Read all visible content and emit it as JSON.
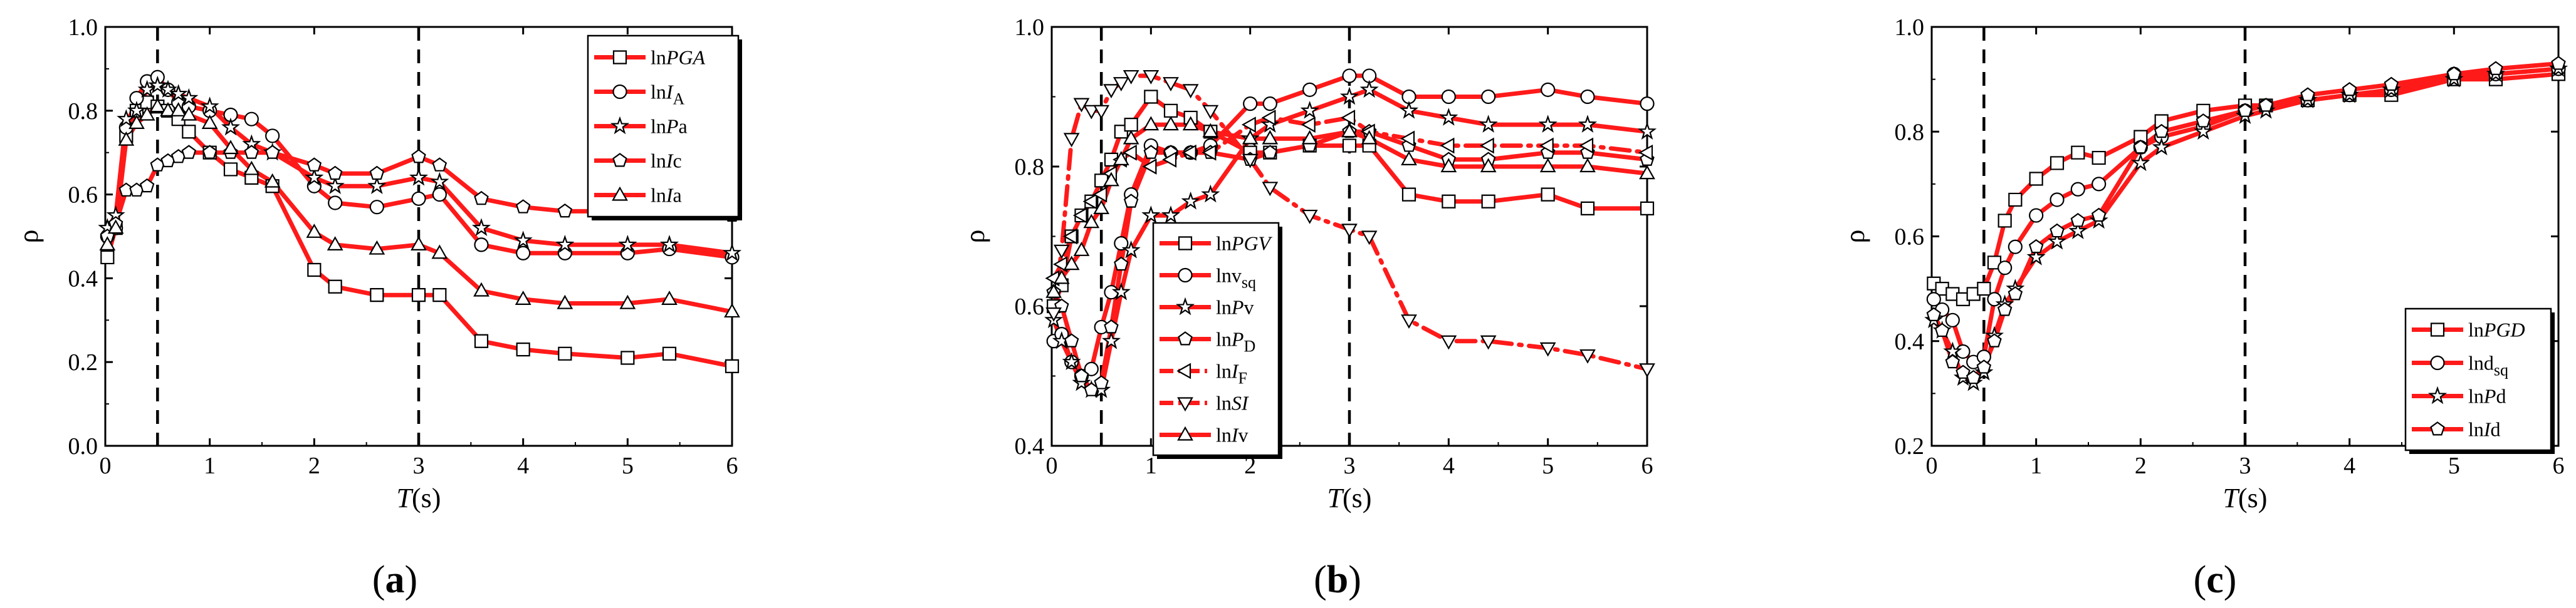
{
  "figure": {
    "panel_labels": [
      "(a)",
      "(b)",
      "(c)"
    ]
  },
  "colors": {
    "line": "#ff1a1a",
    "axis": "#000000",
    "marker_fill": "#ffffff",
    "ref_line": "#000000"
  },
  "chart_data": [
    {
      "type": "line",
      "panel": "(a)",
      "xlabel_italic": "T",
      "xlabel_unit": "(s)",
      "ylabel": "ρ",
      "xlim": [
        0,
        6
      ],
      "ylim": [
        0,
        1
      ],
      "xticks": [
        0,
        1,
        2,
        3,
        4,
        5,
        6
      ],
      "yticks": [
        0.0,
        0.2,
        0.4,
        0.6,
        0.8,
        1.0
      ],
      "ytick_labels": [
        "0.0",
        "0.2",
        "0.4",
        "0.6",
        "0.8",
        "1.0"
      ],
      "ref_lines_x": [
        0.5,
        3.0
      ],
      "legend_position": "top-right",
      "x": [
        0.02,
        0.1,
        0.2,
        0.3,
        0.4,
        0.5,
        0.6,
        0.7,
        0.8,
        1.0,
        1.2,
        1.4,
        1.6,
        2.0,
        2.2,
        2.6,
        3.0,
        3.2,
        3.6,
        4.0,
        4.4,
        5.0,
        5.4,
        6.0
      ],
      "series": [
        {
          "name": "lnPGA",
          "parts": [
            {
              "t": "ln"
            },
            {
              "t": "PGA",
              "i": true
            }
          ],
          "marker": "square",
          "dash": false,
          "values": [
            0.45,
            0.52,
            0.74,
            0.8,
            0.82,
            0.81,
            0.8,
            0.78,
            0.75,
            0.7,
            0.66,
            0.64,
            0.62,
            0.42,
            0.38,
            0.36,
            0.36,
            0.36,
            0.25,
            0.23,
            0.22,
            0.21,
            0.22,
            0.19
          ]
        },
        {
          "name": "lnIA",
          "parts": [
            {
              "t": "ln"
            },
            {
              "t": "I",
              "i": true
            },
            {
              "t": "A",
              "sub": true
            }
          ],
          "marker": "circle",
          "dash": false,
          "values": [
            0.5,
            0.52,
            0.76,
            0.83,
            0.87,
            0.88,
            0.85,
            0.82,
            0.81,
            0.8,
            0.79,
            0.78,
            0.74,
            0.62,
            0.58,
            0.57,
            0.59,
            0.6,
            0.48,
            0.46,
            0.46,
            0.46,
            0.47,
            0.45
          ]
        },
        {
          "name": "lnPa",
          "parts": [
            {
              "t": "ln"
            },
            {
              "t": "P",
              "i": true
            },
            {
              "t": "a"
            }
          ],
          "marker": "star",
          "dash": false,
          "values": [
            0.52,
            0.55,
            0.78,
            0.8,
            0.85,
            0.86,
            0.85,
            0.84,
            0.83,
            0.81,
            0.76,
            0.72,
            0.7,
            0.64,
            0.62,
            0.62,
            0.64,
            0.63,
            0.52,
            0.49,
            0.48,
            0.48,
            0.48,
            0.46
          ]
        },
        {
          "name": "lnIc",
          "parts": [
            {
              "t": "ln"
            },
            {
              "t": "I",
              "i": true
            },
            {
              "t": "c"
            }
          ],
          "marker": "pentagon",
          "dash": false,
          "values": [
            0.5,
            0.53,
            0.61,
            0.61,
            0.62,
            0.67,
            0.68,
            0.69,
            0.7,
            0.7,
            0.7,
            0.7,
            0.7,
            0.67,
            0.65,
            0.65,
            0.69,
            0.67,
            0.59,
            0.57,
            0.56,
            0.56,
            0.57,
            0.55
          ]
        },
        {
          "name": "lnIa",
          "parts": [
            {
              "t": "ln"
            },
            {
              "t": "I",
              "i": true
            },
            {
              "t": "a"
            }
          ],
          "marker": "triangle",
          "dash": false,
          "values": [
            0.48,
            0.52,
            0.73,
            0.77,
            0.79,
            0.81,
            0.8,
            0.8,
            0.79,
            0.77,
            0.71,
            0.66,
            0.63,
            0.51,
            0.48,
            0.47,
            0.48,
            0.46,
            0.37,
            0.35,
            0.34,
            0.34,
            0.35,
            0.32
          ]
        }
      ]
    },
    {
      "type": "line",
      "panel": "(b)",
      "xlabel_italic": "T",
      "xlabel_unit": "(s)",
      "ylabel": "ρ",
      "xlim": [
        0,
        6
      ],
      "ylim": [
        0.4,
        1.0
      ],
      "xticks": [
        0,
        1,
        2,
        3,
        4,
        5,
        6
      ],
      "yticks": [
        0.4,
        0.6,
        0.8,
        1.0
      ],
      "ytick_labels": [
        "0.4",
        "0.6",
        "0.8",
        "1.0"
      ],
      "ref_lines_x": [
        0.5,
        3.0
      ],
      "legend_position": "lower-left-center",
      "x": [
        0.02,
        0.1,
        0.2,
        0.3,
        0.4,
        0.5,
        0.6,
        0.7,
        0.8,
        1.0,
        1.2,
        1.4,
        1.6,
        2.0,
        2.2,
        2.6,
        3.0,
        3.2,
        3.6,
        4.0,
        4.4,
        5.0,
        5.4,
        6.0
      ],
      "series": [
        {
          "name": "lnPGV",
          "parts": [
            {
              "t": "ln"
            },
            {
              "t": "PGV",
              "i": true
            }
          ],
          "marker": "square",
          "dash": false,
          "values": [
            0.6,
            0.63,
            0.7,
            0.73,
            0.75,
            0.78,
            0.81,
            0.85,
            0.86,
            0.9,
            0.88,
            0.87,
            0.85,
            0.82,
            0.82,
            0.83,
            0.83,
            0.83,
            0.76,
            0.75,
            0.75,
            0.76,
            0.74,
            0.74
          ]
        },
        {
          "name": "lnvsq",
          "parts": [
            {
              "t": "lnv"
            },
            {
              "t": "sq",
              "sub": true
            }
          ],
          "marker": "circle",
          "dash": false,
          "values": [
            0.55,
            0.56,
            0.52,
            0.5,
            0.51,
            0.57,
            0.62,
            0.69,
            0.76,
            0.83,
            0.82,
            0.82,
            0.83,
            0.89,
            0.89,
            0.91,
            0.93,
            0.93,
            0.9,
            0.9,
            0.9,
            0.91,
            0.9,
            0.89
          ]
        },
        {
          "name": "lnPv",
          "parts": [
            {
              "t": "ln"
            },
            {
              "t": "P",
              "i": true
            },
            {
              "t": "v"
            }
          ],
          "marker": "star",
          "dash": false,
          "values": [
            0.58,
            0.55,
            0.52,
            0.49,
            0.48,
            0.48,
            0.55,
            0.62,
            0.68,
            0.73,
            0.73,
            0.75,
            0.76,
            0.84,
            0.86,
            0.88,
            0.9,
            0.91,
            0.88,
            0.87,
            0.86,
            0.86,
            0.86,
            0.85
          ]
        },
        {
          "name": "lnPD",
          "parts": [
            {
              "t": "ln"
            },
            {
              "t": "P",
              "i": true
            },
            {
              "t": "D",
              "sub": true
            }
          ],
          "marker": "pentagon",
          "dash": false,
          "values": [
            0.62,
            0.6,
            0.55,
            0.5,
            0.48,
            0.49,
            0.57,
            0.66,
            0.75,
            0.82,
            0.82,
            0.82,
            0.82,
            0.81,
            0.82,
            0.83,
            0.85,
            0.85,
            0.83,
            0.81,
            0.81,
            0.82,
            0.82,
            0.81
          ]
        },
        {
          "name": "lnIF",
          "parts": [
            {
              "t": "ln"
            },
            {
              "t": "I",
              "i": true
            },
            {
              "t": "F",
              "sub": true
            }
          ],
          "marker": "ltriangle",
          "dash": true,
          "values": [
            0.64,
            0.66,
            0.7,
            0.73,
            0.75,
            0.76,
            0.79,
            0.81,
            0.82,
            0.8,
            0.81,
            0.82,
            0.82,
            0.86,
            0.87,
            0.86,
            0.87,
            0.85,
            0.84,
            0.83,
            0.83,
            0.83,
            0.83,
            0.82
          ]
        },
        {
          "name": "lnSI",
          "parts": [
            {
              "t": "ln"
            },
            {
              "t": "SI",
              "i": true
            }
          ],
          "marker": "dtriangle",
          "dash": true,
          "values": [
            0.59,
            0.68,
            0.84,
            0.89,
            0.88,
            0.88,
            0.91,
            0.92,
            0.93,
            0.93,
            0.92,
            0.91,
            0.88,
            0.81,
            0.77,
            0.73,
            0.71,
            0.7,
            0.58,
            0.55,
            0.55,
            0.54,
            0.53,
            0.51
          ]
        },
        {
          "name": "lnIv",
          "parts": [
            {
              "t": "ln"
            },
            {
              "t": "I",
              "i": true
            },
            {
              "t": "v"
            }
          ],
          "marker": "triangle",
          "dash": false,
          "values": [
            0.62,
            0.64,
            0.66,
            0.68,
            0.72,
            0.74,
            0.78,
            0.81,
            0.84,
            0.86,
            0.86,
            0.86,
            0.85,
            0.84,
            0.84,
            0.84,
            0.85,
            0.84,
            0.81,
            0.8,
            0.8,
            0.8,
            0.8,
            0.79
          ]
        }
      ]
    },
    {
      "type": "line",
      "panel": "(c)",
      "xlabel_italic": "T",
      "xlabel_unit": "(s)",
      "ylabel": "ρ",
      "xlim": [
        0,
        6
      ],
      "ylim": [
        0.2,
        1.0
      ],
      "xticks": [
        0,
        1,
        2,
        3,
        4,
        5,
        6
      ],
      "yticks": [
        0.2,
        0.4,
        0.6,
        0.8,
        1.0
      ],
      "ytick_labels": [
        "0.2",
        "0.4",
        "0.6",
        "0.8",
        "1.0"
      ],
      "ref_lines_x": [
        0.5,
        3.0
      ],
      "legend_position": "bottom-center",
      "x": [
        0.02,
        0.1,
        0.2,
        0.3,
        0.4,
        0.5,
        0.6,
        0.7,
        0.8,
        1.0,
        1.2,
        1.4,
        1.6,
        2.0,
        2.2,
        2.6,
        3.0,
        3.2,
        3.6,
        4.0,
        4.4,
        5.0,
        5.4,
        6.0
      ],
      "series": [
        {
          "name": "lnPGD",
          "parts": [
            {
              "t": "ln"
            },
            {
              "t": "PGD",
              "i": true
            }
          ],
          "marker": "square",
          "dash": false,
          "values": [
            0.51,
            0.5,
            0.49,
            0.48,
            0.49,
            0.5,
            0.55,
            0.63,
            0.67,
            0.71,
            0.74,
            0.76,
            0.75,
            0.79,
            0.82,
            0.84,
            0.85,
            0.85,
            0.86,
            0.87,
            0.87,
            0.9,
            0.9,
            0.91
          ]
        },
        {
          "name": "lndsq",
          "parts": [
            {
              "t": "lnd"
            },
            {
              "t": "sq",
              "sub": true
            }
          ],
          "marker": "circle",
          "dash": false,
          "values": [
            0.48,
            0.46,
            0.44,
            0.38,
            0.36,
            0.37,
            0.48,
            0.54,
            0.58,
            0.64,
            0.67,
            0.69,
            0.7,
            0.77,
            0.79,
            0.81,
            0.84,
            0.85,
            0.86,
            0.87,
            0.88,
            0.91,
            0.91,
            0.92
          ]
        },
        {
          "name": "lnPd",
          "parts": [
            {
              "t": "ln"
            },
            {
              "t": "P",
              "i": true
            },
            {
              "t": "d"
            }
          ],
          "marker": "star",
          "dash": false,
          "values": [
            0.44,
            0.42,
            0.38,
            0.33,
            0.32,
            0.34,
            0.41,
            0.47,
            0.5,
            0.56,
            0.59,
            0.61,
            0.63,
            0.74,
            0.77,
            0.8,
            0.83,
            0.84,
            0.86,
            0.87,
            0.88,
            0.9,
            0.91,
            0.92
          ]
        },
        {
          "name": "lnId",
          "parts": [
            {
              "t": "ln"
            },
            {
              "t": "I",
              "i": true
            },
            {
              "t": "d"
            }
          ],
          "marker": "pentagon",
          "dash": false,
          "values": [
            0.45,
            0.42,
            0.36,
            0.34,
            0.33,
            0.35,
            0.4,
            0.46,
            0.49,
            0.58,
            0.61,
            0.63,
            0.64,
            0.77,
            0.8,
            0.82,
            0.84,
            0.85,
            0.87,
            0.88,
            0.89,
            0.91,
            0.92,
            0.93
          ]
        }
      ]
    }
  ]
}
